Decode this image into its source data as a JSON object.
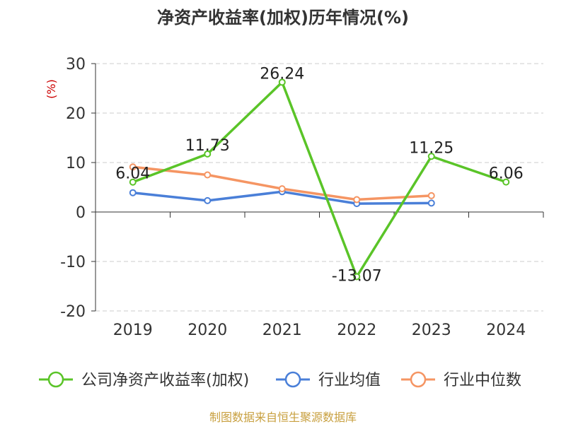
{
  "chart_data": {
    "type": "line",
    "title": "净资产收益率(加权)历年情况(%)",
    "ylabel": "(%)",
    "categories": [
      "2019",
      "2020",
      "2021",
      "2022",
      "2023",
      "2024"
    ],
    "ylim": [
      -20,
      30
    ],
    "yticks": [
      30,
      20,
      10,
      0,
      -10,
      -20
    ],
    "ytick_labels": [
      "30",
      "20",
      "10",
      "0",
      "-10",
      "-20"
    ],
    "grid": true,
    "legend_position": "bottom",
    "series": [
      {
        "name": "公司净资产收益率(加权)",
        "color": "#5ac428",
        "values": [
          6.04,
          11.73,
          26.24,
          -13.07,
          11.25,
          6.06
        ],
        "labels": [
          "6.04",
          "11.73",
          "26.24",
          "-13.07",
          "11.25",
          "6.06"
        ]
      },
      {
        "name": "行业均值",
        "color": "#4a7fd8",
        "values": [
          3.9,
          2.3,
          4.1,
          1.7,
          1.8,
          null
        ]
      },
      {
        "name": "行业中位数",
        "color": "#f59563",
        "values": [
          9.1,
          7.5,
          4.7,
          2.5,
          3.3,
          null
        ]
      }
    ]
  },
  "source": "制图数据来自恒生聚源数据库"
}
